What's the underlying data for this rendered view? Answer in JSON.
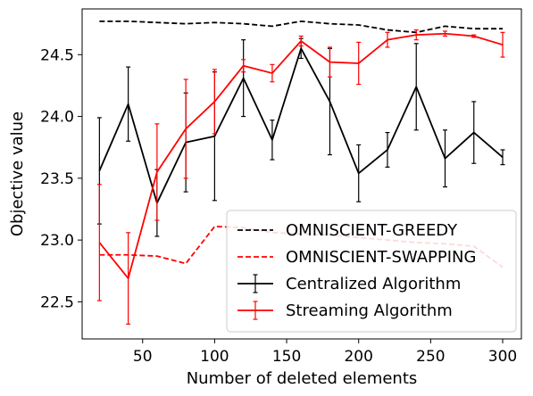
{
  "chart_data": {
    "type": "line",
    "xlabel": "Number of deleted elements",
    "ylabel": "Objective value",
    "xlim": [
      8,
      313
    ],
    "ylim": [
      22.2,
      24.87
    ],
    "xticks": [
      50,
      100,
      150,
      200,
      250,
      300
    ],
    "yticks": [
      22.5,
      23.0,
      23.5,
      24.0,
      24.5
    ],
    "ytick_labels": [
      "22.5",
      "23.0",
      "23.5",
      "24.0",
      "24.5"
    ],
    "grid": false,
    "legend_position": "lower-right",
    "x": [
      20,
      40,
      60,
      80,
      100,
      120,
      140,
      160,
      180,
      200,
      220,
      240,
      260,
      280,
      300
    ],
    "series": [
      {
        "name": "OMNISCIENT-GREEDY",
        "color": "#000000",
        "style": "dashed",
        "values": [
          24.77,
          24.77,
          24.76,
          24.75,
          24.76,
          24.75,
          24.73,
          24.77,
          24.75,
          24.74,
          24.7,
          24.68,
          24.73,
          24.71,
          24.71
        ]
      },
      {
        "name": "OMNISCIENT-SWAPPING",
        "color": "#ff0000",
        "style": "dashed",
        "values": [
          22.88,
          22.88,
          22.87,
          22.81,
          23.11,
          23.1,
          23.06,
          23.05,
          23.04,
          23.02,
          23.0,
          22.98,
          22.97,
          22.95,
          22.78
        ]
      },
      {
        "name": "Centralized Algorithm",
        "color": "#000000",
        "style": "solid",
        "values": [
          23.56,
          24.1,
          23.3,
          23.79,
          23.84,
          24.31,
          23.81,
          24.55,
          24.12,
          23.54,
          23.73,
          24.24,
          23.66,
          23.87,
          23.67
        ],
        "errors": [
          0.43,
          0.3,
          0.27,
          0.4,
          0.52,
          0.31,
          0.16,
          0.08,
          0.43,
          0.23,
          0.14,
          0.35,
          0.23,
          0.25,
          0.06
        ]
      },
      {
        "name": "Streaming Algorithm",
        "color": "#ff0000",
        "style": "solid",
        "values": [
          22.98,
          22.69,
          23.55,
          23.9,
          24.12,
          24.41,
          24.35,
          24.61,
          24.44,
          24.43,
          24.62,
          24.66,
          24.67,
          24.65,
          24.58
        ],
        "errors": [
          0.47,
          0.37,
          0.39,
          0.4,
          0.26,
          0.05,
          0.07,
          0.04,
          0.12,
          0.17,
          0.06,
          0.04,
          0.02,
          0.01,
          0.1
        ]
      }
    ]
  }
}
